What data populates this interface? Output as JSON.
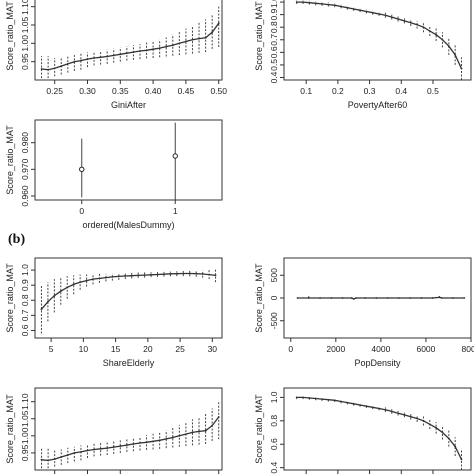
{
  "section_labels": {
    "b": "(b)"
  },
  "chart_data": [
    {
      "id": "p1",
      "type": "line",
      "xlabel": "GiniAfter",
      "ylabel": "Score_ratio_MAT",
      "xlim": [
        0.22,
        0.505
      ],
      "ylim": [
        0.9,
        1.14
      ],
      "xticks": [
        0.25,
        0.3,
        0.35,
        0.4,
        0.45,
        0.5
      ],
      "xtick_labels": [
        "0.25",
        "0.30",
        "0.35",
        "0.40",
        "0.45",
        "0.50"
      ],
      "yticks": [
        0.95,
        1.0,
        1.05,
        1.1
      ],
      "ytick_labels": [
        "0.95",
        "1.00",
        "1.05",
        "1.10"
      ],
      "x": [
        0.23,
        0.24,
        0.25,
        0.26,
        0.27,
        0.28,
        0.29,
        0.3,
        0.31,
        0.32,
        0.33,
        0.34,
        0.35,
        0.36,
        0.37,
        0.38,
        0.39,
        0.4,
        0.41,
        0.42,
        0.43,
        0.44,
        0.45,
        0.46,
        0.47,
        0.48,
        0.49,
        0.5
      ],
      "y": [
        0.93,
        0.928,
        0.932,
        0.938,
        0.944,
        0.95,
        0.953,
        0.957,
        0.96,
        0.962,
        0.964,
        0.967,
        0.97,
        0.973,
        0.976,
        0.979,
        0.981,
        0.984,
        0.987,
        0.991,
        0.995,
        1.0,
        1.005,
        1.01,
        1.013,
        1.015,
        1.03,
        1.055
      ],
      "lower": [
        0.905,
        0.905,
        0.91,
        0.915,
        0.92,
        0.925,
        0.928,
        0.935,
        0.94,
        0.942,
        0.944,
        0.947,
        0.95,
        0.953,
        0.955,
        0.957,
        0.959,
        0.96,
        0.962,
        0.964,
        0.966,
        0.968,
        0.97,
        0.972,
        0.974,
        0.976,
        0.985,
        0.99
      ],
      "upper": [
        0.965,
        0.965,
        0.96,
        0.96,
        0.965,
        0.968,
        0.972,
        0.975,
        0.978,
        0.98,
        0.983,
        0.986,
        0.989,
        0.992,
        0.995,
        0.998,
        1.002,
        1.006,
        1.01,
        1.016,
        1.024,
        1.032,
        1.04,
        1.048,
        1.056,
        1.065,
        1.08,
        1.1
      ]
    },
    {
      "id": "p2",
      "type": "line",
      "xlabel": "PovertyAfter60",
      "ylabel": "Score_ratio_MAT",
      "xlim": [
        0.03,
        0.62
      ],
      "ylim": [
        0.38,
        1.08
      ],
      "xticks": [
        0.1,
        0.2,
        0.3,
        0.4,
        0.5
      ],
      "xtick_labels": [
        "0.1",
        "0.2",
        "0.3",
        "0.4",
        "0.5"
      ],
      "yticks": [
        0.4,
        0.5,
        0.6,
        0.7,
        0.8,
        0.9,
        1.0
      ],
      "ytick_labels": [
        "0.4",
        "0.5",
        "0.6",
        "0.7",
        "0.8",
        "0.9",
        "1.0"
      ],
      "x": [
        0.07,
        0.09,
        0.11,
        0.13,
        0.15,
        0.17,
        0.19,
        0.21,
        0.23,
        0.25,
        0.27,
        0.29,
        0.31,
        0.33,
        0.35,
        0.37,
        0.39,
        0.41,
        0.43,
        0.45,
        0.47,
        0.49,
        0.51,
        0.53,
        0.55,
        0.57,
        0.59
      ],
      "y": [
        1.0,
        1.0,
        0.995,
        0.99,
        0.985,
        0.98,
        0.975,
        0.965,
        0.955,
        0.945,
        0.935,
        0.925,
        0.915,
        0.905,
        0.895,
        0.88,
        0.865,
        0.85,
        0.835,
        0.82,
        0.8,
        0.77,
        0.74,
        0.7,
        0.65,
        0.58,
        0.47
      ],
      "lower": [
        0.985,
        0.985,
        0.98,
        0.975,
        0.97,
        0.965,
        0.96,
        0.95,
        0.94,
        0.93,
        0.92,
        0.91,
        0.9,
        0.89,
        0.875,
        0.86,
        0.845,
        0.83,
        0.81,
        0.79,
        0.76,
        0.73,
        0.69,
        0.64,
        0.58,
        0.5,
        0.38
      ],
      "upper": [
        1.015,
        1.015,
        1.01,
        1.005,
        1.0,
        0.995,
        0.99,
        0.98,
        0.97,
        0.96,
        0.95,
        0.94,
        0.93,
        0.92,
        0.915,
        0.9,
        0.885,
        0.87,
        0.86,
        0.85,
        0.84,
        0.81,
        0.79,
        0.76,
        0.72,
        0.66,
        0.56
      ]
    },
    {
      "id": "p3",
      "type": "scatter",
      "xlabel": "ordered(MalesDummy)",
      "ylabel": "Score_ratio_MAT",
      "xlim": [
        -0.5,
        1.5
      ],
      "ylim": [
        0.9585,
        0.9885
      ],
      "xticks": [
        0,
        1
      ],
      "xtick_labels": [
        "0",
        "1"
      ],
      "yticks": [
        0.96,
        0.97,
        0.98
      ],
      "ytick_labels": [
        "0.960",
        "0.970",
        "0.980"
      ],
      "x": [
        0,
        1
      ],
      "y": [
        0.97,
        0.975
      ],
      "lower": [
        0.9595,
        0.9585
      ],
      "upper": [
        0.9815,
        0.9875
      ]
    },
    {
      "id": "p4",
      "type": "line",
      "xlabel": "ShareElderly",
      "ylabel": "Score_ratio_MAT",
      "xlim": [
        2.5,
        31.5
      ],
      "ylim": [
        0.55,
        1.08
      ],
      "xticks": [
        5,
        10,
        15,
        20,
        25,
        30
      ],
      "xtick_labels": [
        "5",
        "10",
        "15",
        "20",
        "25",
        "30"
      ],
      "yticks": [
        0.6,
        0.7,
        0.8,
        0.9,
        1.0
      ],
      "ytick_labels": [
        "0.6",
        "0.7",
        "0.8",
        "0.9",
        "1.0"
      ],
      "x": [
        3.5,
        4.5,
        5.5,
        6.5,
        7.5,
        8.5,
        9.5,
        10.5,
        11.5,
        12.5,
        13.5,
        14.5,
        15.5,
        16.5,
        17.5,
        18.5,
        19.5,
        20.5,
        21.5,
        22.5,
        23.5,
        24.5,
        25.5,
        26.5,
        27.5,
        28.5,
        29.5,
        30.5
      ],
      "y": [
        0.74,
        0.79,
        0.83,
        0.86,
        0.885,
        0.905,
        0.92,
        0.93,
        0.94,
        0.945,
        0.95,
        0.955,
        0.958,
        0.961,
        0.963,
        0.965,
        0.967,
        0.969,
        0.971,
        0.973,
        0.975,
        0.976,
        0.977,
        0.977,
        0.976,
        0.974,
        0.97,
        0.965
      ],
      "lower": [
        0.58,
        0.66,
        0.72,
        0.77,
        0.81,
        0.84,
        0.87,
        0.89,
        0.905,
        0.915,
        0.925,
        0.93,
        0.935,
        0.94,
        0.945,
        0.948,
        0.95,
        0.953,
        0.955,
        0.957,
        0.959,
        0.96,
        0.96,
        0.958,
        0.955,
        0.95,
        0.94,
        0.92
      ],
      "upper": [
        0.9,
        0.92,
        0.94,
        0.95,
        0.96,
        0.965,
        0.97,
        0.97,
        0.972,
        0.975,
        0.975,
        0.978,
        0.98,
        0.982,
        0.983,
        0.984,
        0.985,
        0.986,
        0.987,
        0.988,
        0.99,
        0.992,
        0.994,
        0.996,
        0.997,
        0.998,
        1.0,
        1.01
      ]
    },
    {
      "id": "p5",
      "type": "line",
      "xlabel": "PopDensity",
      "ylabel": "Score_ratio_MAT",
      "xlim": [
        -300,
        8000
      ],
      "ylim": [
        -880,
        880
      ],
      "xticks": [
        0,
        2000,
        4000,
        6000,
        8000
      ],
      "xtick_labels": [
        "0",
        "2000",
        "4000",
        "6000",
        "8000"
      ],
      "yticks": [
        -500,
        0,
        500
      ],
      "ytick_labels": [
        "-500",
        "0",
        "500"
      ],
      "x": [
        300,
        800,
        1300,
        1800,
        2300,
        2700,
        2800,
        2900,
        3300,
        3800,
        4300,
        4800,
        5300,
        5800,
        6300,
        6600,
        6700,
        7200,
        7700
      ],
      "y": [
        0,
        0,
        0,
        0,
        0,
        0,
        -20,
        0,
        0,
        0,
        0,
        0,
        0,
        0,
        0,
        15,
        0,
        0,
        0
      ],
      "lower": [
        0,
        0,
        0,
        0,
        0,
        0,
        -40,
        0,
        0,
        0,
        0,
        0,
        0,
        0,
        0,
        0,
        0,
        0,
        0
      ],
      "upper": [
        0,
        60,
        0,
        0,
        0,
        0,
        0,
        0,
        0,
        0,
        0,
        0,
        0,
        0,
        0,
        60,
        0,
        0,
        0
      ]
    },
    {
      "id": "p6",
      "type": "line",
      "xlabel": "",
      "ylabel": "Score_ratio_MAT",
      "xlim": [
        0.22,
        0.505
      ],
      "ylim": [
        0.9,
        1.14
      ],
      "xticks": [
        0.25,
        0.3,
        0.35,
        0.4,
        0.45,
        0.5
      ],
      "xtick_labels": [],
      "yticks": [
        0.95,
        1.0,
        1.05,
        1.1
      ],
      "ytick_labels": [
        "0.95",
        "1.00",
        "1.05",
        "1.10"
      ],
      "x": [
        0.23,
        0.24,
        0.25,
        0.26,
        0.27,
        0.28,
        0.29,
        0.3,
        0.31,
        0.32,
        0.33,
        0.34,
        0.35,
        0.36,
        0.37,
        0.38,
        0.39,
        0.4,
        0.41,
        0.42,
        0.43,
        0.44,
        0.45,
        0.46,
        0.47,
        0.48,
        0.49,
        0.5
      ],
      "y": [
        0.93,
        0.928,
        0.932,
        0.938,
        0.944,
        0.95,
        0.953,
        0.957,
        0.96,
        0.962,
        0.964,
        0.967,
        0.97,
        0.973,
        0.976,
        0.979,
        0.981,
        0.984,
        0.987,
        0.991,
        0.995,
        1.0,
        1.005,
        1.01,
        1.013,
        1.015,
        1.03,
        1.055
      ],
      "lower": [
        0.905,
        0.905,
        0.91,
        0.915,
        0.92,
        0.925,
        0.928,
        0.935,
        0.94,
        0.942,
        0.944,
        0.947,
        0.95,
        0.953,
        0.955,
        0.957,
        0.959,
        0.96,
        0.962,
        0.964,
        0.966,
        0.968,
        0.97,
        0.972,
        0.974,
        0.976,
        0.985,
        0.99
      ],
      "upper": [
        0.965,
        0.965,
        0.96,
        0.96,
        0.965,
        0.968,
        0.972,
        0.975,
        0.978,
        0.98,
        0.983,
        0.986,
        0.989,
        0.992,
        0.995,
        0.998,
        1.002,
        1.006,
        1.01,
        1.016,
        1.024,
        1.032,
        1.04,
        1.048,
        1.056,
        1.065,
        1.08,
        1.1
      ]
    },
    {
      "id": "p7",
      "type": "line",
      "xlabel": "",
      "ylabel": "Score_ratio_MAT",
      "xlim": [
        0.03,
        0.62
      ],
      "ylim": [
        0.38,
        1.08
      ],
      "xticks": [
        0.1,
        0.2,
        0.3,
        0.4,
        0.5
      ],
      "xtick_labels": [],
      "yticks": [
        0.4,
        0.6,
        0.8,
        1.0
      ],
      "ytick_labels": [
        "0.4",
        "0.6",
        "0.8",
        "1.0"
      ],
      "x": [
        0.07,
        0.09,
        0.11,
        0.13,
        0.15,
        0.17,
        0.19,
        0.21,
        0.23,
        0.25,
        0.27,
        0.29,
        0.31,
        0.33,
        0.35,
        0.37,
        0.39,
        0.41,
        0.43,
        0.45,
        0.47,
        0.49,
        0.51,
        0.53,
        0.55,
        0.57,
        0.59
      ],
      "y": [
        1.0,
        1.0,
        0.995,
        0.99,
        0.985,
        0.98,
        0.975,
        0.965,
        0.955,
        0.945,
        0.935,
        0.925,
        0.915,
        0.905,
        0.895,
        0.88,
        0.865,
        0.85,
        0.835,
        0.82,
        0.8,
        0.77,
        0.74,
        0.7,
        0.65,
        0.58,
        0.47
      ],
      "lower": [
        0.985,
        0.985,
        0.98,
        0.975,
        0.97,
        0.965,
        0.96,
        0.95,
        0.94,
        0.93,
        0.92,
        0.91,
        0.9,
        0.89,
        0.875,
        0.86,
        0.845,
        0.83,
        0.81,
        0.79,
        0.76,
        0.73,
        0.69,
        0.64,
        0.58,
        0.5,
        0.38
      ],
      "upper": [
        1.015,
        1.015,
        1.01,
        1.005,
        1.0,
        0.995,
        0.99,
        0.98,
        0.97,
        0.96,
        0.95,
        0.94,
        0.93,
        0.92,
        0.915,
        0.9,
        0.885,
        0.87,
        0.86,
        0.85,
        0.84,
        0.81,
        0.79,
        0.76,
        0.72,
        0.66,
        0.56
      ]
    }
  ]
}
